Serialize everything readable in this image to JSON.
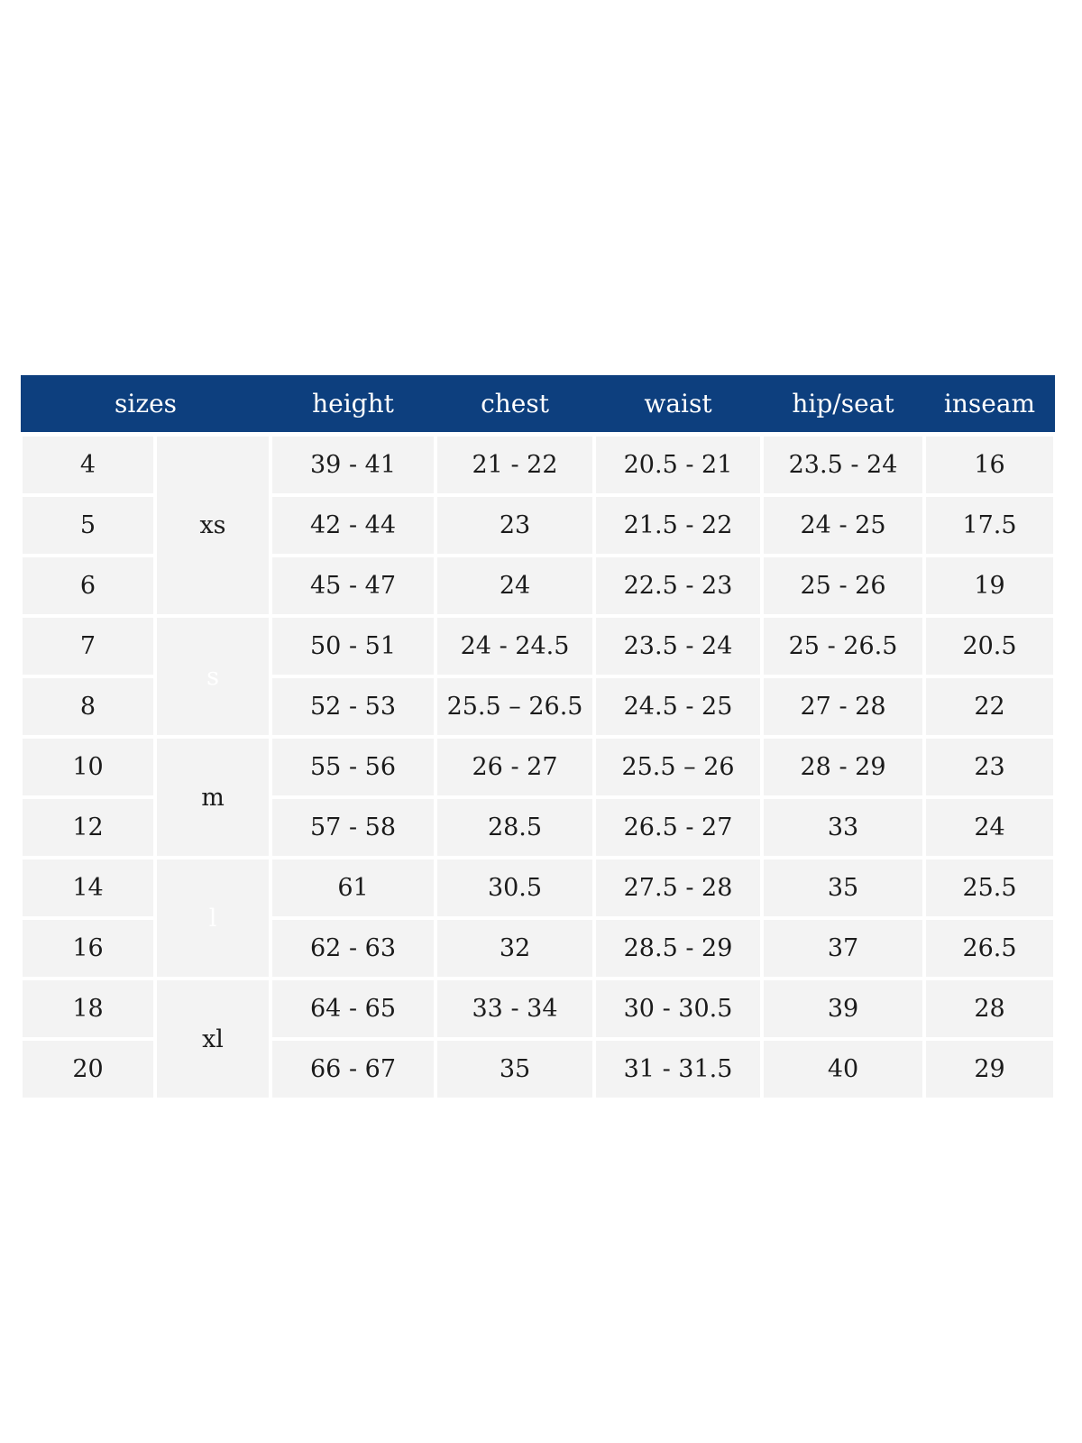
{
  "colors": {
    "header_bg": "#0d3f7e",
    "group_light_bg": "#cdd9e6",
    "group_dark_bg": "#0d3f7e",
    "row_gray": "#d8d8d8",
    "row_light": "#f3f3f3",
    "text_dark": "#1b1b1b",
    "header_text": "#ffffff"
  },
  "table": {
    "headers": [
      "sizes",
      "height",
      "chest",
      "waist",
      "hip/seat",
      "inseam"
    ],
    "groups": [
      {
        "label": "xs",
        "style": "light",
        "rows": [
          {
            "size": "4",
            "height": "39 - 41",
            "chest": "21 - 22",
            "waist": "20.5 - 21",
            "hip_seat": "23.5 - 24",
            "inseam": "16"
          },
          {
            "size": "5",
            "height": "42 - 44",
            "chest": "23",
            "waist": "21.5 - 22",
            "hip_seat": "24 - 25",
            "inseam": "17.5"
          },
          {
            "size": "6",
            "height": "45 - 47",
            "chest": "24",
            "waist": "22.5 - 23",
            "hip_seat": "25 - 26",
            "inseam": "19"
          }
        ]
      },
      {
        "label": "s",
        "style": "dark",
        "rows": [
          {
            "size": "7",
            "height": "50 - 51",
            "chest": "24 - 24.5",
            "waist": "23.5 - 24",
            "hip_seat": "25 - 26.5",
            "inseam": "20.5"
          },
          {
            "size": "8",
            "height": "52 - 53",
            "chest": "25.5 – 26.5",
            "waist": "24.5 - 25",
            "hip_seat": "27 - 28",
            "inseam": "22"
          }
        ]
      },
      {
        "label": "m",
        "style": "light",
        "rows": [
          {
            "size": "10",
            "height": "55 - 56",
            "chest": "26 - 27",
            "waist": "25.5 – 26",
            "hip_seat": "28 - 29",
            "inseam": "23"
          },
          {
            "size": "12",
            "height": "57 - 58",
            "chest": "28.5",
            "waist": "26.5 - 27",
            "hip_seat": "33",
            "inseam": "24"
          }
        ]
      },
      {
        "label": "l",
        "style": "dark",
        "rows": [
          {
            "size": "14",
            "height": "61",
            "chest": "30.5",
            "waist": "27.5 - 28",
            "hip_seat": "35",
            "inseam": "25.5"
          },
          {
            "size": "16",
            "height": "62 - 63",
            "chest": "32",
            "waist": "28.5 - 29",
            "hip_seat": "37",
            "inseam": "26.5"
          }
        ]
      },
      {
        "label": "xl",
        "style": "light",
        "rows": [
          {
            "size": "18",
            "height": "64 - 65",
            "chest": "33 - 34",
            "waist": "30 - 30.5",
            "hip_seat": "39",
            "inseam": "28"
          },
          {
            "size": "20",
            "height": "66 - 67",
            "chest": "35",
            "waist": "31 - 31.5",
            "hip_seat": "40",
            "inseam": "29"
          }
        ]
      }
    ]
  }
}
